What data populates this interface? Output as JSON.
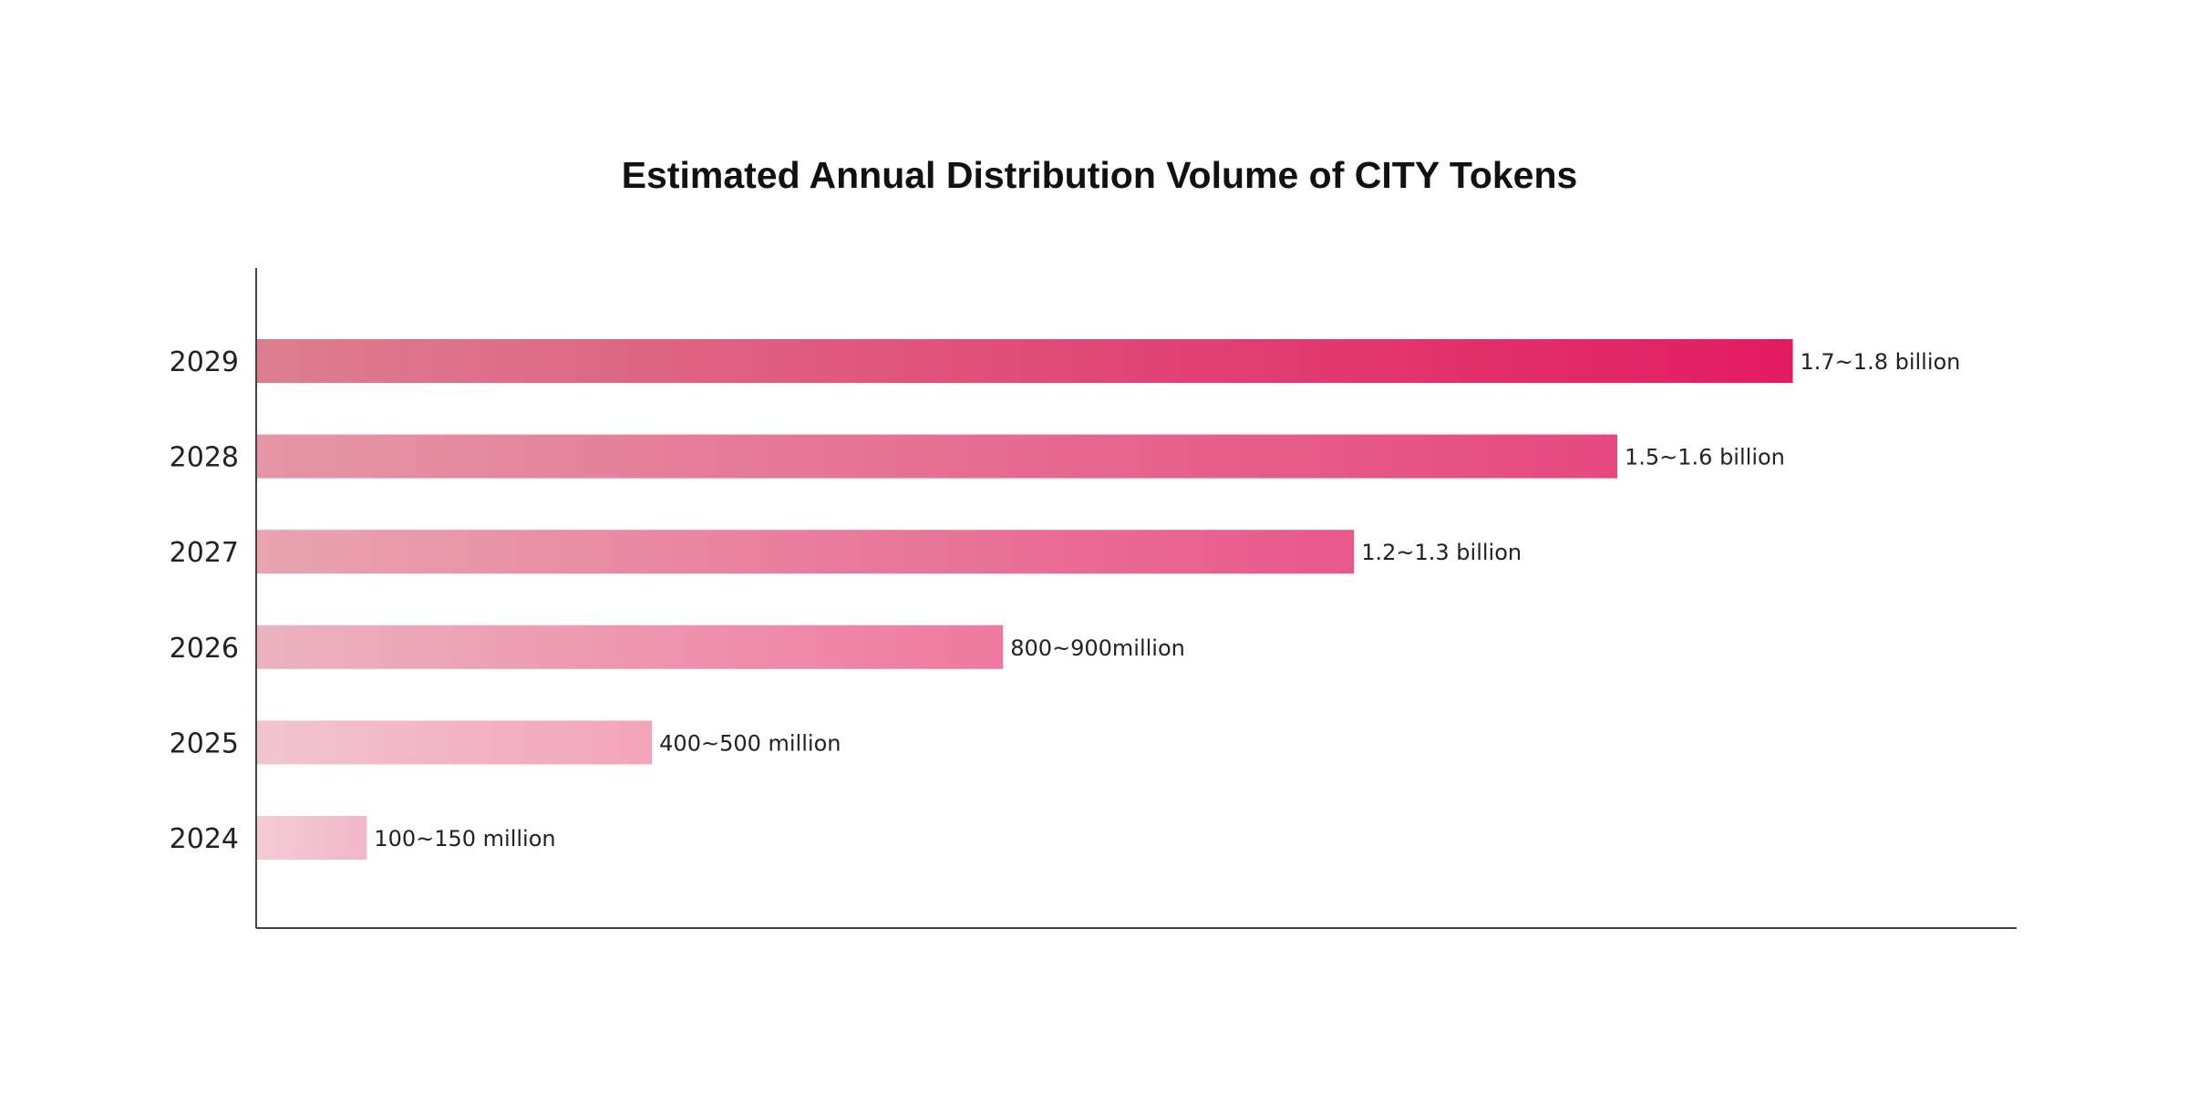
{
  "chart_data": {
    "type": "bar",
    "orientation": "horizontal",
    "title": "Estimated Annual Distribution Volume of CITY Tokens",
    "xlabel": "",
    "ylabel": "",
    "grid": false,
    "legend": "none",
    "categories": [
      "2029",
      "2028",
      "2027",
      "2026",
      "2025",
      "2024"
    ],
    "values": [
      1.75,
      1.55,
      1.25,
      0.85,
      0.45,
      0.125
    ],
    "value_unit": "billion",
    "xlim": [
      0,
      2.0
    ],
    "data_labels": [
      "1.7~1.8 billion",
      "1.5~1.6 billion",
      "1.2~1.3 billion",
      "800~900million",
      "400~500 million",
      "100~150 million"
    ],
    "colors": {
      "bars": [
        {
          "start": "#dd7e90",
          "end": "#e31b61"
        },
        {
          "start": "#e596a6",
          "end": "#e6487f"
        },
        {
          "start": "#e9a4b0",
          "end": "#e9578b"
        },
        {
          "start": "#ecb3bf",
          "end": "#ef799f"
        },
        {
          "start": "#f1c5d0",
          "end": "#f3a4ba"
        },
        {
          "start": "#f4ccd5",
          "end": "#f2b7c7"
        }
      ],
      "text": "#222222",
      "title": "#111111",
      "axis": "#444444"
    }
  }
}
